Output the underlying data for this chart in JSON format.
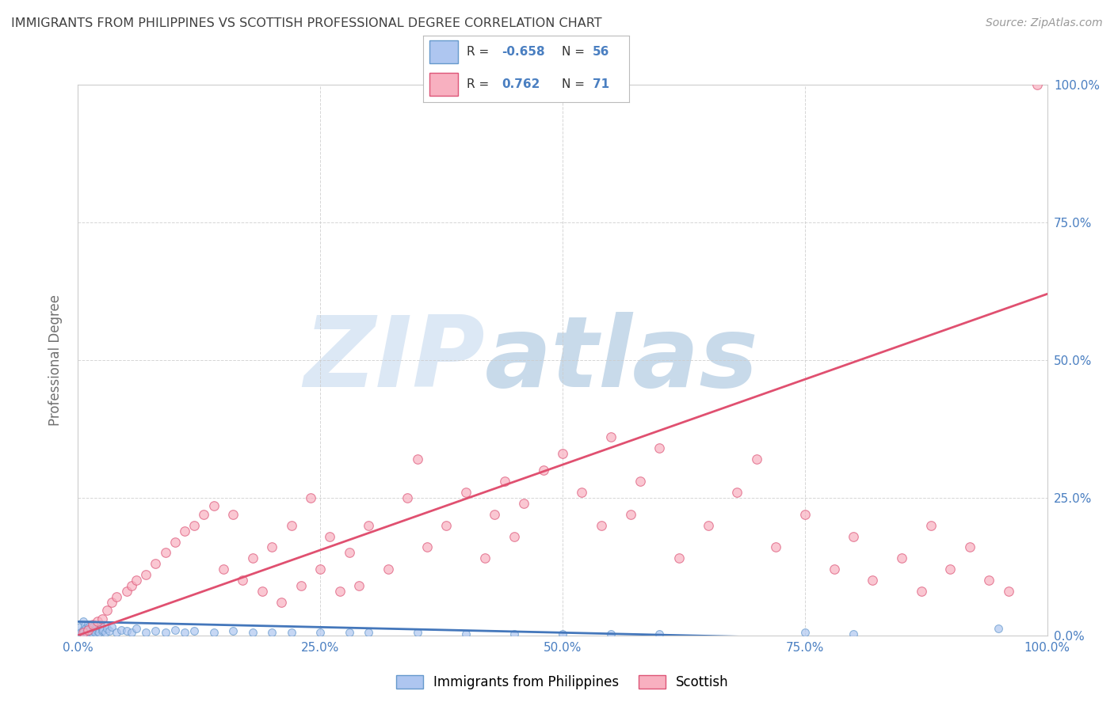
{
  "title": "IMMIGRANTS FROM PHILIPPINES VS SCOTTISH PROFESSIONAL DEGREE CORRELATION CHART",
  "source": "Source: ZipAtlas.com",
  "ylabel": "Professional Degree",
  "xlim": [
    0,
    100
  ],
  "ylim": [
    0,
    100
  ],
  "xtick_labels": [
    "0.0%",
    "25.0%",
    "50.0%",
    "75.0%",
    "100.0%"
  ],
  "xtick_vals": [
    0,
    25,
    50,
    75,
    100
  ],
  "ytick_labels": [
    "0.0%",
    "25.0%",
    "50.0%",
    "75.0%",
    "100.0%"
  ],
  "ytick_vals": [
    0,
    25,
    50,
    75,
    100
  ],
  "series": [
    {
      "name": "Immigrants from Philippines",
      "color": "#aec6f0",
      "edge_color": "#6699cc",
      "R": -0.658,
      "N": 56,
      "trend_color": "#4477bb",
      "trend_x": [
        0,
        100
      ],
      "trend_y": [
        2.5,
        -1.5
      ],
      "points_x": [
        0.2,
        0.3,
        0.5,
        0.5,
        0.6,
        0.7,
        0.8,
        0.9,
        1.0,
        1.1,
        1.2,
        1.3,
        1.4,
        1.5,
        1.6,
        1.7,
        1.8,
        1.9,
        2.0,
        2.1,
        2.2,
        2.4,
        2.5,
        2.6,
        2.8,
        3.0,
        3.2,
        3.5,
        4.0,
        4.5,
        5.0,
        5.5,
        6.0,
        7.0,
        8.0,
        9.0,
        10.0,
        11.0,
        12.0,
        14.0,
        16.0,
        18.0,
        20.0,
        22.0,
        25.0,
        28.0,
        30.0,
        35.0,
        40.0,
        45.0,
        50.0,
        55.0,
        60.0,
        75.0,
        80.0,
        95.0
      ],
      "points_y": [
        1.5,
        0.5,
        2.5,
        1.0,
        0.8,
        1.8,
        1.2,
        0.5,
        2.0,
        1.5,
        0.8,
        1.2,
        0.6,
        1.5,
        0.8,
        1.0,
        0.5,
        1.8,
        0.8,
        1.2,
        0.5,
        1.5,
        0.8,
        1.0,
        0.6,
        1.2,
        0.8,
        1.5,
        0.5,
        1.0,
        0.8,
        0.5,
        1.2,
        0.5,
        0.8,
        0.5,
        1.0,
        0.6,
        0.8,
        0.5,
        0.8,
        0.5,
        0.5,
        0.5,
        0.5,
        0.5,
        0.5,
        0.5,
        0.3,
        0.3,
        0.3,
        0.3,
        0.3,
        0.5,
        0.3,
        1.2
      ]
    },
    {
      "name": "Scottish",
      "color": "#f8b0c0",
      "edge_color": "#dd5577",
      "R": 0.762,
      "N": 71,
      "trend_color": "#e05070",
      "trend_x": [
        0,
        100
      ],
      "trend_y": [
        0,
        62
      ],
      "points_x": [
        0.5,
        1.0,
        1.5,
        2.0,
        2.5,
        3.0,
        3.5,
        4.0,
        5.0,
        5.5,
        6.0,
        7.0,
        8.0,
        9.0,
        10.0,
        11.0,
        12.0,
        13.0,
        14.0,
        15.0,
        16.0,
        17.0,
        18.0,
        19.0,
        20.0,
        21.0,
        22.0,
        23.0,
        24.0,
        25.0,
        26.0,
        27.0,
        28.0,
        29.0,
        30.0,
        32.0,
        34.0,
        35.0,
        36.0,
        38.0,
        40.0,
        42.0,
        43.0,
        44.0,
        45.0,
        46.0,
        48.0,
        50.0,
        52.0,
        54.0,
        55.0,
        57.0,
        58.0,
        60.0,
        62.0,
        65.0,
        68.0,
        70.0,
        72.0,
        75.0,
        78.0,
        80.0,
        82.0,
        85.0,
        87.0,
        88.0,
        90.0,
        92.0,
        94.0,
        96.0,
        99.0
      ],
      "points_y": [
        0.5,
        1.0,
        2.0,
        2.5,
        3.0,
        4.5,
        6.0,
        7.0,
        8.0,
        9.0,
        10.0,
        11.0,
        13.0,
        15.0,
        17.0,
        19.0,
        20.0,
        22.0,
        23.5,
        12.0,
        22.0,
        10.0,
        14.0,
        8.0,
        16.0,
        6.0,
        20.0,
        9.0,
        25.0,
        12.0,
        18.0,
        8.0,
        15.0,
        9.0,
        20.0,
        12.0,
        25.0,
        32.0,
        16.0,
        20.0,
        26.0,
        14.0,
        22.0,
        28.0,
        18.0,
        24.0,
        30.0,
        33.0,
        26.0,
        20.0,
        36.0,
        22.0,
        28.0,
        34.0,
        14.0,
        20.0,
        26.0,
        32.0,
        16.0,
        22.0,
        12.0,
        18.0,
        10.0,
        14.0,
        8.0,
        20.0,
        12.0,
        16.0,
        10.0,
        8.0,
        100.0
      ]
    }
  ],
  "watermark_zip": "ZIP",
  "watermark_atlas": "atlas",
  "watermark_color": "#dce8f5",
  "background_color": "#ffffff",
  "grid_color": "#cccccc",
  "title_color": "#404040",
  "axis_label_color": "#707070",
  "tick_color": "#4a7fc1",
  "legend_R_color": "#4a7fc1",
  "legend_N_color": "#4a7fc1"
}
